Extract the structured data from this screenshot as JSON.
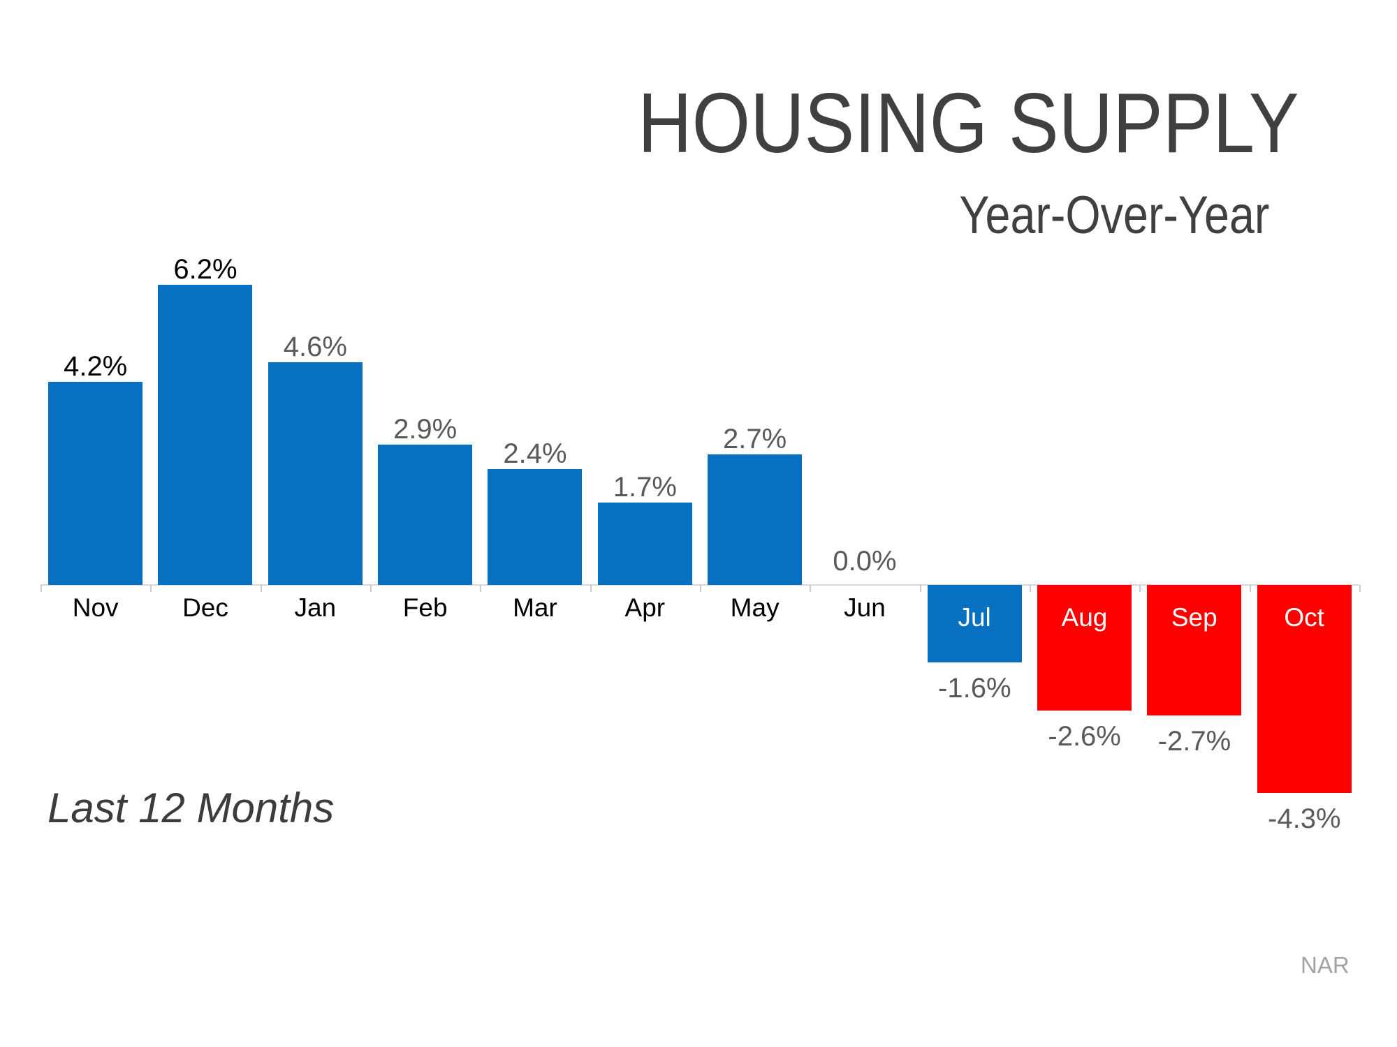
{
  "page": {
    "title": "HOUSING SUPPLY",
    "subtitle": "Year-Over-Year",
    "caption": "Last 12 Months",
    "source": "NAR"
  },
  "colors": {
    "bar_blue": "#0870C0",
    "bar_red": "#FE0000",
    "title_gray": "#404040",
    "value_label_gray": "#595959",
    "value_label_black": "#000000",
    "axis_gray": "#D9D9D9"
  },
  "chart_data": {
    "type": "bar",
    "title": "HOUSING SUPPLY",
    "subtitle": "Year-Over-Year",
    "caption": "Last 12 Months",
    "source": "NAR",
    "categories": [
      "Nov",
      "Dec",
      "Jan",
      "Feb",
      "Mar",
      "Apr",
      "May",
      "Jun",
      "Jul",
      "Aug",
      "Sep",
      "Oct"
    ],
    "values": [
      4.2,
      6.2,
      4.6,
      2.9,
      2.4,
      1.7,
      2.7,
      0.0,
      -1.6,
      -2.6,
      -2.7,
      -4.3
    ],
    "value_labels": [
      "4.2%",
      "6.2%",
      "4.6%",
      "2.9%",
      "2.4%",
      "1.7%",
      "2.7%",
      "0.0%",
      "-1.6%",
      "-2.6%",
      "-2.7%",
      "-4.3%"
    ],
    "bar_colors": [
      "#0870C0",
      "#0870C0",
      "#0870C0",
      "#0870C0",
      "#0870C0",
      "#0870C0",
      "#0870C0",
      null,
      "#0870C0",
      "#FE0000",
      "#FE0000",
      "#FE0000"
    ],
    "value_label_colors": [
      "#000000",
      "#000000",
      "#595959",
      "#595959",
      "#595959",
      "#595959",
      "#595959",
      "#595959",
      "#595959",
      "#595959",
      "#595959",
      "#595959"
    ],
    "month_label_placement": [
      "axis",
      "axis",
      "axis",
      "axis",
      "axis",
      "axis",
      "axis",
      "axis",
      "inside",
      "inside",
      "inside",
      "inside"
    ],
    "xlabel": "",
    "ylabel": "",
    "unit": "percent",
    "ylim": [
      -5,
      7
    ],
    "grid": false,
    "legend": "none"
  }
}
